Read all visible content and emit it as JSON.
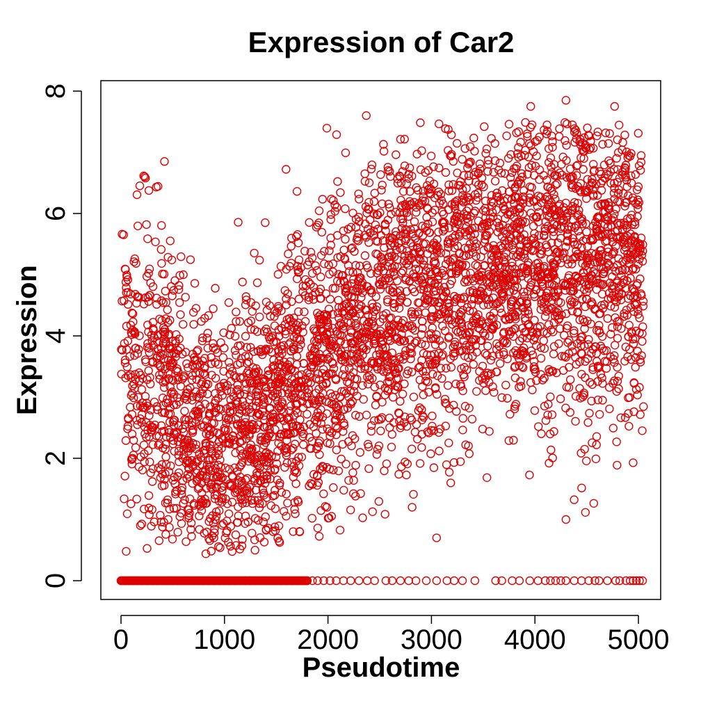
{
  "chart_data": {
    "type": "scatter",
    "title": "Expression of Car2",
    "xlabel": "Pseudotime",
    "ylabel": "Expression",
    "xlim": [
      0,
      5050
    ],
    "ylim": [
      0,
      8
    ],
    "xticks": [
      0,
      1000,
      2000,
      3000,
      4000,
      5000
    ],
    "yticks": [
      0,
      2,
      4,
      6,
      8
    ],
    "grid": false,
    "legend": "none",
    "point_color": "#dd0000",
    "marker": "open-circle",
    "zero_points_x": [
      0,
      40,
      80,
      120,
      160,
      200,
      250,
      300,
      350,
      400,
      450,
      500,
      550,
      600,
      650,
      700,
      750,
      800,
      850,
      900,
      950,
      1000,
      1050,
      1100,
      1150,
      1200,
      1250,
      1300,
      1350,
      1400,
      1450,
      1500,
      1550,
      1600,
      1650,
      1700,
      1750,
      1800,
      1850,
      1900,
      1960,
      2020,
      2080,
      2150,
      2220,
      2300,
      2380,
      2450,
      2560,
      2620,
      2700,
      2780,
      2850,
      2950,
      3050,
      3150,
      3220,
      3300,
      3420,
      3620,
      3680,
      3780,
      3850,
      3950,
      4030,
      4100,
      4150,
      4200,
      4250,
      4300,
      4380,
      4450,
      4520,
      4580,
      4620,
      4700,
      4780,
      4820,
      4880,
      4920,
      4950,
      4980,
      5010,
      5040
    ],
    "series": [
      {
        "trend": {
          "x": [
            0,
            300,
            600,
            900,
            1200,
            1500,
            1800,
            2100,
            2400,
            2700,
            3000,
            3300,
            3600,
            3900,
            4200,
            4500,
            4800,
            5050
          ],
          "y": [
            3.4,
            3.3,
            2.5,
            2.1,
            2.4,
            2.8,
            3.4,
            4.0,
            4.3,
            4.6,
            4.8,
            5.0,
            5.1,
            5.2,
            5.2,
            5.3,
            5.3,
            5.2
          ]
        },
        "spread_sd": [
          1.3,
          1.4,
          1.1,
          1.1,
          1.1,
          1.2,
          1.2,
          1.2,
          1.2,
          1.3,
          1.3,
          1.3,
          1.2,
          1.3,
          1.3,
          1.3,
          1.3,
          1.3
        ],
        "n_points": 4200
      }
    ],
    "notable_points": [
      {
        "x": 2370,
        "y": 7.6
      },
      {
        "x": 420,
        "y": 6.85
      },
      {
        "x": 230,
        "y": 6.6
      },
      {
        "x": 4300,
        "y": 7.85
      },
      {
        "x": 4770,
        "y": 7.75
      },
      {
        "x": 3960,
        "y": 7.75
      },
      {
        "x": 50,
        "y": 0.48
      },
      {
        "x": 820,
        "y": 0.44
      },
      {
        "x": 4300,
        "y": 1.0
      },
      {
        "x": 3050,
        "y": 0.7
      }
    ]
  }
}
